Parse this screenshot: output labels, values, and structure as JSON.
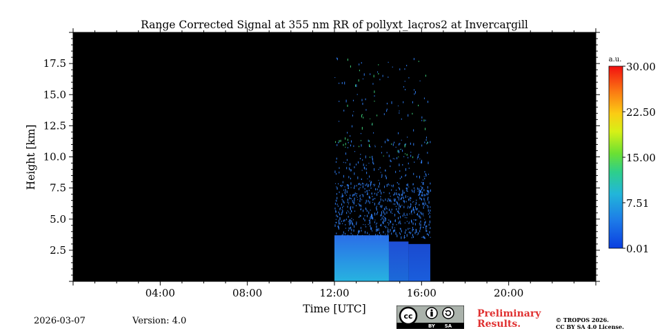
{
  "chart_data": {
    "type": "heatmap",
    "title": "Range Corrected Signal at 355 nm RR of pollyxt_lacros2 at Invercargill",
    "xlabel": "Time [UTC]",
    "ylabel": "Height [km]",
    "xlim_hours": [
      0,
      24
    ],
    "ylim_km": [
      0,
      20
    ],
    "x_ticks": [
      {
        "hour": 4,
        "label": "04:00"
      },
      {
        "hour": 8,
        "label": "08:00"
      },
      {
        "hour": 12,
        "label": "12:00"
      },
      {
        "hour": 16,
        "label": "16:00"
      },
      {
        "hour": 20,
        "label": "20:00"
      }
    ],
    "y_ticks": [
      {
        "value": 2.5,
        "label": "2.5"
      },
      {
        "value": 5.0,
        "label": "5.0"
      },
      {
        "value": 7.5,
        "label": "7.5"
      },
      {
        "value": 10.0,
        "label": "10.0"
      },
      {
        "value": 12.5,
        "label": "12.5"
      },
      {
        "value": 15.0,
        "label": "15.0"
      },
      {
        "value": 17.5,
        "label": "17.5"
      }
    ],
    "colorbar": {
      "unit": "a.u.",
      "range": [
        0.01,
        30.0
      ],
      "ticks": [
        {
          "value": 0.01,
          "label": "0.01"
        },
        {
          "value": 7.51,
          "label": "7.51"
        },
        {
          "value": 15.0,
          "label": "15.00"
        },
        {
          "value": 22.5,
          "label": "22.50"
        },
        {
          "value": 30.0,
          "label": "30.00"
        }
      ]
    },
    "background_color": "#000000",
    "measurement_period_hours": [
      12.0,
      16.4
    ],
    "layers": [
      {
        "start": 12.0,
        "end": 14.5,
        "top_km": 3.7,
        "bottom_color": "#27b3e0",
        "top_color": "#2a6ee8"
      },
      {
        "start": 14.5,
        "end": 15.4,
        "top_km": 3.2,
        "bottom_color": "#1c6ad8",
        "top_color": "#1f4fd6"
      },
      {
        "start": 15.4,
        "end": 16.4,
        "top_km": 3.0,
        "bottom_color": "#1a5edc",
        "top_color": "#1a4ad0"
      }
    ]
  },
  "footer": {
    "date": "2026-03-07",
    "version": "Version: 4.0",
    "license_badge": {
      "cc": "cc",
      "by": "BY",
      "sa": "SA"
    },
    "preliminary_line1": "Preliminary",
    "preliminary_line2": "Results.",
    "copyright_line1": "© TROPOS 2026.",
    "copyright_line2": "CC BY SA 4.0 License."
  },
  "colors": {
    "preliminary": "#e03030"
  }
}
